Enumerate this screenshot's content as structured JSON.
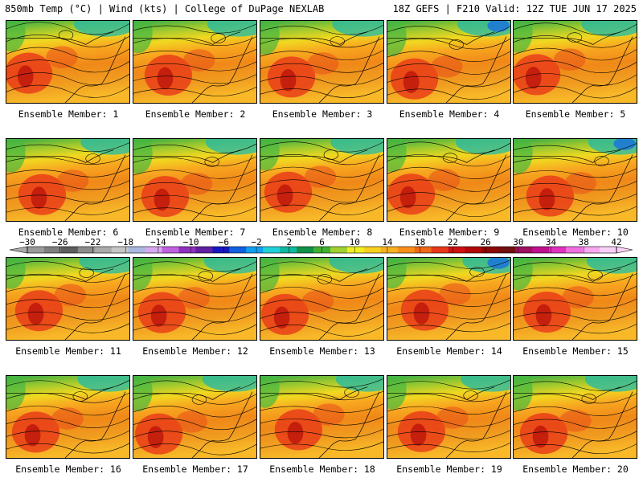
{
  "header": {
    "left": "850mb Temp (°C) | Wind (kts) | College of DuPage NEXLAB",
    "right": "18Z GEFS | F210 Valid: 12Z TUE JUN 17 2025"
  },
  "panels": [
    {
      "label": "Ensemble Member: 1"
    },
    {
      "label": "Ensemble Member: 2"
    },
    {
      "label": "Ensemble Member: 3"
    },
    {
      "label": "Ensemble Member: 4"
    },
    {
      "label": "Ensemble Member: 5"
    },
    {
      "label": "Ensemble Member: 6"
    },
    {
      "label": "Ensemble Member: 7"
    },
    {
      "label": "Ensemble Member: 8"
    },
    {
      "label": "Ensemble Member: 9"
    },
    {
      "label": "Ensemble Member: 10"
    },
    {
      "label": "Ensemble Member: 11"
    },
    {
      "label": "Ensemble Member: 12"
    },
    {
      "label": "Ensemble Member: 13"
    },
    {
      "label": "Ensemble Member: 14"
    },
    {
      "label": "Ensemble Member: 15"
    },
    {
      "label": "Ensemble Member: 16"
    },
    {
      "label": "Ensemble Member: 17"
    },
    {
      "label": "Ensemble Member: 18"
    },
    {
      "label": "Ensemble Member: 19"
    },
    {
      "label": "Ensemble Member: 20"
    }
  ],
  "colorbar": {
    "tick_labels": [
      "-30",
      "-26",
      "-22",
      "-18",
      "-14",
      "-10",
      "-6",
      "-2",
      "2",
      "6",
      "10",
      "14",
      "18",
      "22",
      "26",
      "30",
      "34",
      "38",
      "42"
    ],
    "colors": [
      "#9a9a9a",
      "#7e7e7e",
      "#5e5e5e",
      "#8c8c8c",
      "#aaaaaa",
      "#c6c6c6",
      "#a8b8e0",
      "#d8a8f0",
      "#c060e0",
      "#9030c0",
      "#6020a0",
      "#1818c0",
      "#1060e0",
      "#10a0f0",
      "#20d0d8",
      "#10b8a0",
      "#109048",
      "#40b030",
      "#a0d030",
      "#f0f020",
      "#f8d020",
      "#f8b020",
      "#f89018",
      "#f06818",
      "#e83818",
      "#d01010",
      "#b00808",
      "#8c0808",
      "#701010",
      "#a01060",
      "#c01090",
      "#e030c0",
      "#f070e0",
      "#f8a8f0",
      "#f8d0f8"
    ]
  }
}
